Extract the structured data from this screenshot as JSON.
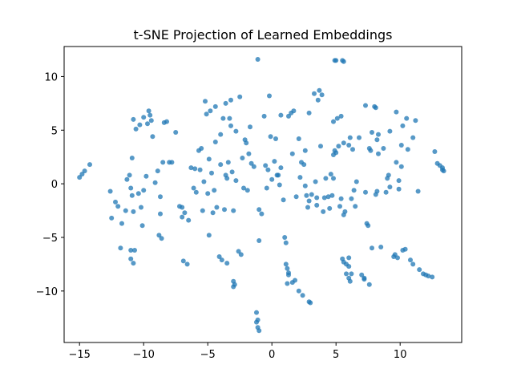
{
  "chart_data": {
    "type": "scatter",
    "title": "t-SNE Projection of Learned Embeddings",
    "xlabel": "",
    "ylabel": "",
    "xlim": [
      -16.2,
      14.8
    ],
    "ylim": [
      -14.8,
      12.8
    ],
    "x_ticks": [
      -15,
      -10,
      -5,
      0,
      5,
      10
    ],
    "y_ticks": [
      -10,
      -5,
      0,
      5,
      10
    ],
    "x_tick_labels": [
      "−15",
      "−10",
      "−5",
      "0",
      "5",
      "10"
    ],
    "y_tick_labels": [
      "−10",
      "−5",
      "0",
      "5",
      "10"
    ],
    "grid": false,
    "legend": "none",
    "marker_color": "#1f77b4",
    "marker_alpha": 0.75,
    "points": [
      [
        -15.0,
        0.6
      ],
      [
        -14.8,
        0.9
      ],
      [
        -14.6,
        1.2
      ],
      [
        -14.2,
        1.8
      ],
      [
        -12.6,
        -0.7
      ],
      [
        -12.5,
        -3.2
      ],
      [
        -12.2,
        -1.7
      ],
      [
        -12.0,
        -2.1
      ],
      [
        -11.7,
        -3.7
      ],
      [
        -11.8,
        -6.0
      ],
      [
        -11.4,
        -2.5
      ],
      [
        -11.3,
        0.4
      ],
      [
        -11.1,
        0.8
      ],
      [
        -11.0,
        -0.4
      ],
      [
        -10.9,
        -1.1
      ],
      [
        -10.8,
        -2.6
      ],
      [
        -11.0,
        -6.2
      ],
      [
        -11.0,
        -7.0
      ],
      [
        -10.8,
        -7.4
      ],
      [
        -10.7,
        -6.2
      ],
      [
        -10.9,
        2.4
      ],
      [
        -10.8,
        6.0
      ],
      [
        -10.6,
        5.1
      ],
      [
        -10.4,
        -0.9
      ],
      [
        -10.3,
        5.5
      ],
      [
        -10.2,
        -2.2
      ],
      [
        -10.1,
        -3.9
      ],
      [
        -10.0,
        -0.6
      ],
      [
        -9.8,
        0.7
      ],
      [
        -10.0,
        6.2
      ],
      [
        -9.7,
        5.6
      ],
      [
        -9.6,
        6.8
      ],
      [
        -9.5,
        6.4
      ],
      [
        -9.4,
        5.9
      ],
      [
        -9.3,
        4.4
      ],
      [
        -9.1,
        0.1
      ],
      [
        -8.9,
        1.2
      ],
      [
        -8.7,
        -1.2
      ],
      [
        -8.7,
        -2.8
      ],
      [
        -8.8,
        -4.8
      ],
      [
        -8.6,
        -5.1
      ],
      [
        -8.5,
        2.0
      ],
      [
        -8.4,
        5.7
      ],
      [
        -8.2,
        5.8
      ],
      [
        -8.0,
        2.0
      ],
      [
        -7.8,
        2.0
      ],
      [
        -7.2,
        -2.1
      ],
      [
        -7.0,
        -3.1
      ],
      [
        -7.0,
        -2.2
      ],
      [
        -6.9,
        -7.2
      ],
      [
        -6.8,
        -2.7
      ],
      [
        -6.6,
        -7.5
      ],
      [
        -6.5,
        -3.4
      ],
      [
        -6.3,
        1.5
      ],
      [
        -6.1,
        -0.4
      ],
      [
        -5.9,
        -0.8
      ],
      [
        -5.7,
        3.1
      ],
      [
        -5.6,
        1.3
      ],
      [
        -5.5,
        3.3
      ],
      [
        -5.4,
        -2.5
      ],
      [
        -5.2,
        7.7
      ],
      [
        -5.1,
        6.5
      ],
      [
        -5.0,
        -0.9
      ],
      [
        -4.9,
        -4.8
      ],
      [
        -4.9,
        2.3
      ],
      [
        -4.8,
        6.8
      ],
      [
        -4.7,
        1.0
      ],
      [
        -4.6,
        -2.7
      ],
      [
        -4.5,
        -0.6
      ],
      [
        -4.4,
        7.2
      ],
      [
        -4.3,
        -2.2
      ],
      [
        -4.1,
        -6.8
      ],
      [
        -4.0,
        4.6
      ],
      [
        -4.0,
        1.8
      ],
      [
        -3.9,
        -7.1
      ],
      [
        -3.8,
        6.1
      ],
      [
        -3.7,
        -2.4
      ],
      [
        -3.6,
        7.5
      ],
      [
        -3.6,
        0.8
      ],
      [
        -3.5,
        0.5
      ],
      [
        -3.5,
        -7.4
      ],
      [
        -3.4,
        2.0
      ],
      [
        -3.3,
        6.1
      ],
      [
        -3.2,
        5.4
      ],
      [
        -3.1,
        1.1
      ],
      [
        -3.0,
        -2.5
      ],
      [
        -3.2,
        7.8
      ],
      [
        -3.0,
        -9.1
      ],
      [
        -3.0,
        -9.6
      ],
      [
        -2.9,
        -9.4
      ],
      [
        -2.8,
        0.3
      ],
      [
        -2.8,
        4.9
      ],
      [
        -2.6,
        -6.3
      ],
      [
        -2.5,
        8.1
      ],
      [
        -2.4,
        -6.6
      ],
      [
        -2.3,
        2.4
      ],
      [
        -2.2,
        -0.4
      ],
      [
        -2.1,
        4.1
      ],
      [
        -2.0,
        3.8
      ],
      [
        -1.8,
        2.8
      ],
      [
        -1.7,
        5.3
      ],
      [
        -1.6,
        1.9
      ],
      [
        -1.4,
        1.6
      ],
      [
        -1.2,
        -12.0
      ],
      [
        -1.1,
        -12.7
      ],
      [
        -1.2,
        -12.9
      ],
      [
        -1.1,
        -13.4
      ],
      [
        -1.0,
        -13.7
      ],
      [
        -1.1,
        11.6
      ],
      [
        -1.0,
        -2.4
      ],
      [
        -1.0,
        -5.3
      ],
      [
        -0.8,
        -2.8
      ],
      [
        -0.6,
        6.3
      ],
      [
        -0.5,
        1.7
      ],
      [
        -0.4,
        -0.4
      ],
      [
        -0.3,
        1.3
      ],
      [
        -0.2,
        8.2
      ],
      [
        -0.1,
        4.4
      ],
      [
        0.0,
        0.4
      ],
      [
        0.2,
        2.1
      ],
      [
        0.3,
        4.2
      ],
      [
        0.4,
        0.8
      ],
      [
        0.5,
        0.8
      ],
      [
        0.6,
        -0.1
      ],
      [
        0.7,
        6.4
      ],
      [
        0.7,
        1.5
      ],
      [
        1.0,
        -5.0
      ],
      [
        1.1,
        -5.5
      ],
      [
        1.1,
        -7.5
      ],
      [
        1.2,
        -7.9
      ],
      [
        1.3,
        -8.3
      ],
      [
        1.3,
        -8.5
      ],
      [
        1.3,
        6.3
      ],
      [
        1.2,
        -9.3
      ],
      [
        1.5,
        6.6
      ],
      [
        1.6,
        -9.2
      ],
      [
        1.6,
        2.8
      ],
      [
        1.7,
        6.8
      ],
      [
        1.8,
        -9.0
      ],
      [
        1.9,
        -1.2
      ],
      [
        2.1,
        4.2
      ],
      [
        2.1,
        -10.0
      ],
      [
        2.2,
        0.6
      ],
      [
        2.3,
        2.0
      ],
      [
        2.4,
        -10.4
      ],
      [
        2.5,
        1.8
      ],
      [
        2.6,
        3.1
      ],
      [
        2.6,
        -0.2
      ],
      [
        2.7,
        -1.1
      ],
      [
        2.9,
        -11.0
      ],
      [
        3.0,
        -11.1
      ],
      [
        2.9,
        -1.6
      ],
      [
        2.8,
        -2.2
      ],
      [
        2.9,
        6.6
      ],
      [
        3.1,
        -1.0
      ],
      [
        3.3,
        8.4
      ],
      [
        3.4,
        0.2
      ],
      [
        3.5,
        -1.3
      ],
      [
        3.6,
        7.8
      ],
      [
        3.7,
        8.7
      ],
      [
        3.8,
        3.5
      ],
      [
        3.9,
        8.3
      ],
      [
        4.0,
        -2.6
      ],
      [
        4.1,
        -1.3
      ],
      [
        4.2,
        0.5
      ],
      [
        4.4,
        -1.2
      ],
      [
        4.5,
        -2.3
      ],
      [
        4.6,
        0.9
      ],
      [
        4.7,
        -1.1
      ],
      [
        4.8,
        5.8
      ],
      [
        4.8,
        2.7
      ],
      [
        4.8,
        0.5
      ],
      [
        4.9,
        3.1
      ],
      [
        5.0,
        2.9
      ],
      [
        4.9,
        11.5
      ],
      [
        5.0,
        11.5
      ],
      [
        5.1,
        6.1
      ],
      [
        5.2,
        3.5
      ],
      [
        5.3,
        -2.1
      ],
      [
        5.4,
        6.3
      ],
      [
        5.4,
        -1.4
      ],
      [
        5.5,
        11.5
      ],
      [
        5.6,
        11.4
      ],
      [
        5.6,
        3.8
      ],
      [
        5.6,
        -2.9
      ],
      [
        5.7,
        -2.6
      ],
      [
        5.5,
        -7.0
      ],
      [
        5.6,
        -7.3
      ],
      [
        5.8,
        -7.5
      ],
      [
        6.0,
        -6.9
      ],
      [
        6.0,
        -7.7
      ],
      [
        6.1,
        4.3
      ],
      [
        6.0,
        3.6
      ],
      [
        5.8,
        -8.4
      ],
      [
        6.0,
        -8.8
      ],
      [
        6.1,
        -9.1
      ],
      [
        6.2,
        -8.4
      ],
      [
        6.2,
        -1.4
      ],
      [
        6.3,
        3.2
      ],
      [
        6.4,
        -0.6
      ],
      [
        6.5,
        -2.1
      ],
      [
        6.8,
        4.3
      ],
      [
        7.0,
        -8.5
      ],
      [
        7.2,
        -8.8
      ],
      [
        7.2,
        -8.9
      ],
      [
        7.3,
        -0.8
      ],
      [
        7.3,
        7.3
      ],
      [
        7.4,
        -3.7
      ],
      [
        7.5,
        -3.9
      ],
      [
        7.6,
        -9.4
      ],
      [
        7.6,
        3.3
      ],
      [
        7.7,
        3.1
      ],
      [
        7.8,
        -6.0
      ],
      [
        7.8,
        4.8
      ],
      [
        8.0,
        7.2
      ],
      [
        8.1,
        7.1
      ],
      [
        8.1,
        -1.0
      ],
      [
        8.2,
        -0.7
      ],
      [
        8.2,
        4.1
      ],
      [
        8.3,
        4.6
      ],
      [
        8.3,
        2.8
      ],
      [
        8.5,
        -5.9
      ],
      [
        8.7,
        3.3
      ],
      [
        8.9,
        -0.8
      ],
      [
        9.0,
        0.5
      ],
      [
        9.1,
        0.8
      ],
      [
        9.2,
        -0.3
      ],
      [
        9.2,
        4.9
      ],
      [
        9.5,
        -6.8
      ],
      [
        9.6,
        -6.6
      ],
      [
        9.7,
        6.7
      ],
      [
        9.7,
        2.0
      ],
      [
        9.8,
        -6.9
      ],
      [
        9.9,
        0.3
      ],
      [
        9.9,
        -0.5
      ],
      [
        10.1,
        1.6
      ],
      [
        10.1,
        3.6
      ],
      [
        10.2,
        -6.2
      ],
      [
        10.2,
        5.4
      ],
      [
        10.4,
        -6.1
      ],
      [
        10.5,
        6.1
      ],
      [
        10.6,
        3.2
      ],
      [
        10.8,
        -7.1
      ],
      [
        11.0,
        -7.5
      ],
      [
        11.0,
        4.3
      ],
      [
        11.2,
        5.9
      ],
      [
        11.4,
        -0.7
      ],
      [
        11.5,
        -8.0
      ],
      [
        11.8,
        -8.4
      ],
      [
        12.0,
        -8.5
      ],
      [
        12.2,
        -8.6
      ],
      [
        12.5,
        -8.7
      ],
      [
        12.7,
        3.0
      ],
      [
        12.9,
        1.9
      ],
      [
        13.1,
        1.7
      ],
      [
        13.3,
        1.5
      ],
      [
        13.4,
        1.2
      ],
      [
        13.3,
        1.3
      ],
      [
        -6.0,
        1.4
      ],
      [
        -5.3,
        0.2
      ],
      [
        -1.9,
        -0.6
      ],
      [
        0.9,
        -1.5
      ],
      [
        3.5,
        -2.0
      ],
      [
        6.6,
        0.2
      ],
      [
        -7.5,
        4.8
      ],
      [
        -4.4,
        3.9
      ]
    ]
  }
}
